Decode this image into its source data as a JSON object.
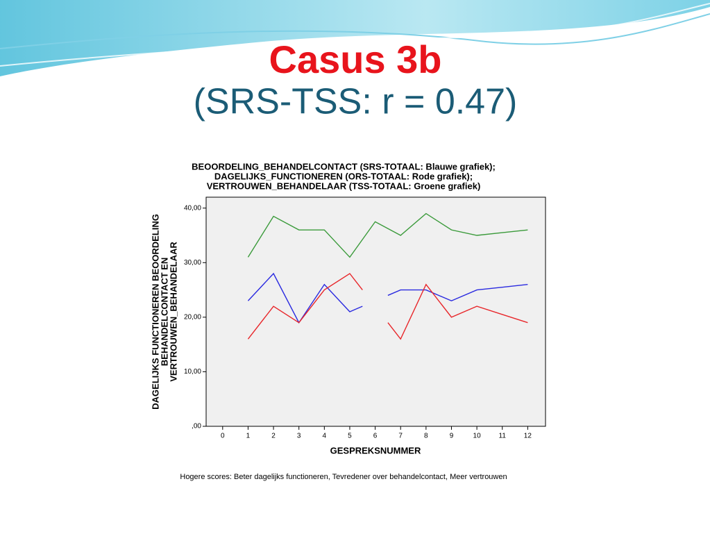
{
  "slide": {
    "title": "Casus 3b",
    "subtitle": "(SRS-TSS: r = 0.47)"
  },
  "chart_data": {
    "type": "line",
    "title": [
      "BEOORDELING_BEHANDELCONTACT  (SRS-TOTAAL: Blauwe grafiek);",
      "DAGELIJKS_FUNCTIONEREN (ORS-TOTAAL: Rode grafiek);",
      "VERTROUWEN_BEHANDELAAR (TSS-TOTAAL: Groene grafiek)"
    ],
    "y_label": [
      "DAGELIJKS FUNCTIONEREN BEOORDELING",
      "BEHANDELCONTACT EN",
      "VERTROUWEN_BEHANDELAAR"
    ],
    "x_label": "GESPREKSNUMMER",
    "note": "Hogere scores: Beter dagelijks functioneren, Tevredener over behandelcontact, Meer vertrouwen",
    "xlim": [
      -0.65,
      12.7
    ],
    "xticks": [
      0,
      1,
      2,
      3,
      4,
      5,
      6,
      7,
      8,
      9,
      10,
      11,
      12
    ],
    "ylim": [
      0,
      42
    ],
    "yticks": [
      {
        "value": 0,
        "label": ",00"
      },
      {
        "value": 10,
        "label": "10,00"
      },
      {
        "value": 20,
        "label": "20,00"
      },
      {
        "value": 30,
        "label": "30,00"
      },
      {
        "value": 40,
        "label": "40,00"
      }
    ],
    "series": [
      {
        "name": "TSS-TOTAAL",
        "color": "#3a9a3a",
        "x": [
          1,
          2,
          3,
          4,
          5,
          6,
          7,
          8,
          9,
          10,
          11,
          12
        ],
        "values": [
          31,
          38.5,
          36,
          36,
          31,
          37.5,
          35,
          39,
          36,
          35,
          35.5,
          36
        ]
      },
      {
        "name": "SRS-TOTAAL",
        "color": "#2a2ae0",
        "x": [
          1,
          2,
          3,
          4,
          5,
          5.5,
          6,
          6.5,
          7,
          8,
          9,
          10,
          11,
          12
        ],
        "values": [
          23,
          28,
          19,
          26,
          21,
          22,
          null,
          24,
          25,
          25,
          23,
          25,
          25.5,
          26
        ]
      },
      {
        "name": "ORS-TOTAAL",
        "color": "#e8262a",
        "x": [
          1,
          2,
          3,
          4,
          5,
          5.5,
          6,
          6.5,
          7,
          8,
          9,
          10,
          11,
          12
        ],
        "values": [
          16,
          22,
          19,
          25,
          28,
          25,
          null,
          19,
          16,
          26,
          20,
          22,
          20.5,
          19
        ]
      }
    ]
  }
}
